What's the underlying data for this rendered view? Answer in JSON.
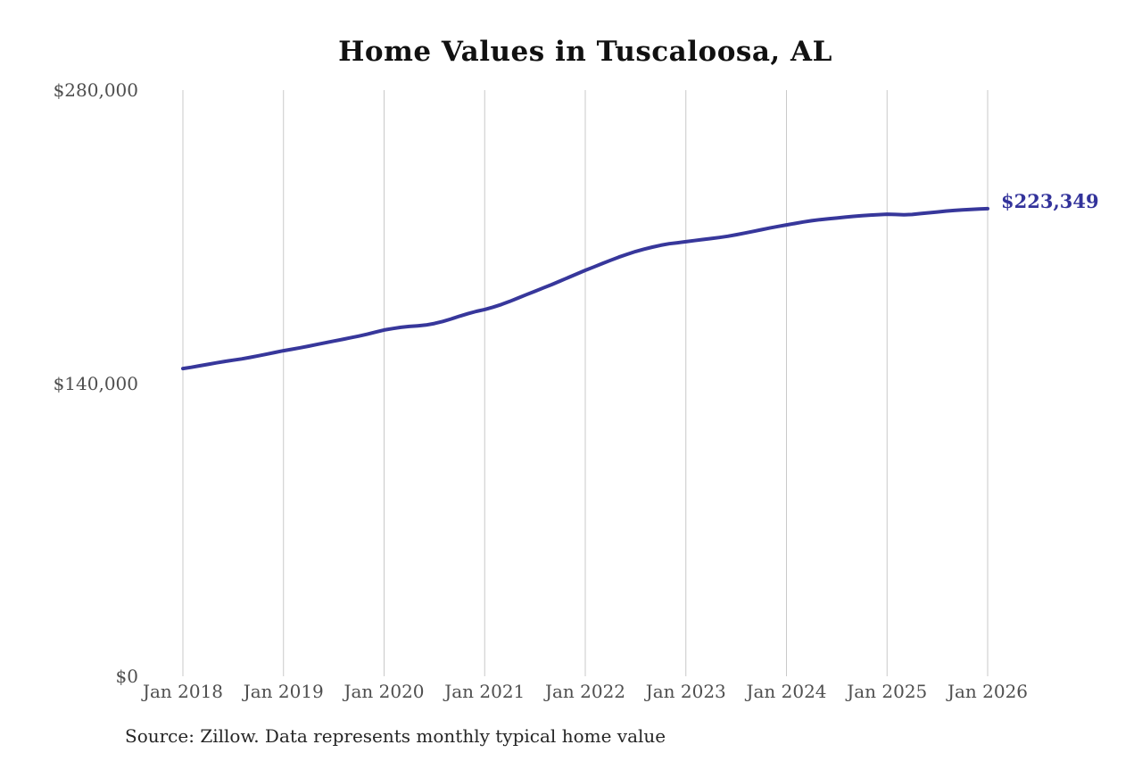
{
  "chart": {
    "title": "Home Values in Tuscaloosa, AL",
    "end_label": "$223,349",
    "source": "Source: Zillow. Data represents monthly typical home value",
    "colors": {
      "line": "#37379b",
      "end_label": "#33339b",
      "gridline": "#c9c9c9",
      "axis_text": "#4f4f4f",
      "title_text": "#111111"
    }
  },
  "chart_data": {
    "type": "line",
    "title": "Home Values in Tuscaloosa, AL",
    "x_start": "2018-01",
    "x_end": "2026-01",
    "frequency": "monthly",
    "x_tick_labels": [
      "Jan 2018",
      "Jan 2019",
      "Jan 2020",
      "Jan 2021",
      "Jan 2022",
      "Jan 2023",
      "Jan 2024",
      "Jan 2025",
      "Jan 2026"
    ],
    "y_ticks": [
      {
        "label": "$0",
        "value": 0
      },
      {
        "label": "$140,000",
        "value": 140000
      },
      {
        "label": "$280,000",
        "value": 280000
      }
    ],
    "ylim": [
      0,
      280000
    ],
    "grid": "vertical-only",
    "legend": "none",
    "end_label": "$223,349",
    "source": "Source: Zillow. Data represents monthly typical home value",
    "series": [
      {
        "name": "Monthly typical home value",
        "values": [
          147000,
          147600,
          148300,
          149000,
          149700,
          150400,
          151000,
          151600,
          152300,
          153100,
          153900,
          154700,
          155500,
          156200,
          156900,
          157700,
          158500,
          159300,
          160100,
          160900,
          161700,
          162500,
          163400,
          164400,
          165400,
          166100,
          166700,
          167100,
          167400,
          167800,
          168500,
          169500,
          170700,
          172000,
          173200,
          174300,
          175200,
          176300,
          177600,
          179100,
          180700,
          182300,
          183900,
          185500,
          187100,
          188800,
          190500,
          192200,
          193900,
          195500,
          197100,
          198700,
          200200,
          201600,
          202900,
          204000,
          205000,
          205900,
          206600,
          207100,
          207600,
          208100,
          208600,
          209100,
          209600,
          210200,
          210900,
          211700,
          212500,
          213300,
          214100,
          214900,
          215600,
          216300,
          217000,
          217600,
          218100,
          218500,
          218900,
          219300,
          219700,
          220000,
          220300,
          220500,
          220700,
          220600,
          220400,
          220600,
          221000,
          221400,
          221800,
          222200,
          222500,
          222800,
          223000,
          223200,
          223349
        ]
      }
    ]
  }
}
